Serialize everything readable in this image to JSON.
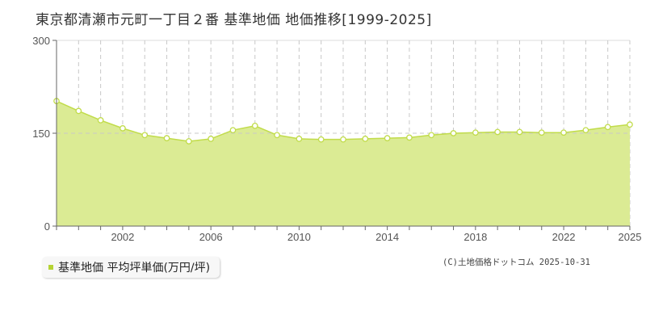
{
  "title": "東京都清瀬市元町一丁目２番 基準地価 地価推移[1999-2025]",
  "legend": {
    "label": "基準地価 平均坪単価(万円/坪)",
    "color": "#b5d334"
  },
  "copyright": "(C)土地価格ドットコム 2025-10-31",
  "colors": {
    "fill": "#dbeb94",
    "line": "#c1dc4a",
    "grid": "#c8c8c8",
    "axis": "#666666"
  },
  "chart_data": {
    "type": "area",
    "title": "東京都清瀬市元町一丁目２番 基準地価 地価推移[1999-2025]",
    "xlabel": "",
    "ylabel": "基準地価 平均坪単価(万円/坪)",
    "x": [
      1999,
      2000,
      2001,
      2002,
      2003,
      2004,
      2005,
      2006,
      2007,
      2008,
      2009,
      2010,
      2011,
      2012,
      2013,
      2014,
      2015,
      2016,
      2017,
      2018,
      2019,
      2020,
      2021,
      2022,
      2023,
      2024,
      2025
    ],
    "series": [
      {
        "name": "基準地価 平均坪単価(万円/坪)",
        "values": [
          202,
          186,
          171,
          158,
          147,
          142,
          137,
          141,
          155,
          162,
          147,
          141,
          140,
          140,
          141,
          142,
          143,
          147,
          150,
          151,
          152,
          152,
          151,
          151,
          155,
          160,
          164
        ]
      }
    ],
    "ylim": [
      0,
      300
    ],
    "yticks": [
      0,
      150,
      300
    ],
    "xtick_labels": [
      "2002",
      "2006",
      "2010",
      "2014",
      "2018",
      "2022",
      "2025"
    ],
    "grid": true,
    "legend_position": "bottom-left"
  }
}
